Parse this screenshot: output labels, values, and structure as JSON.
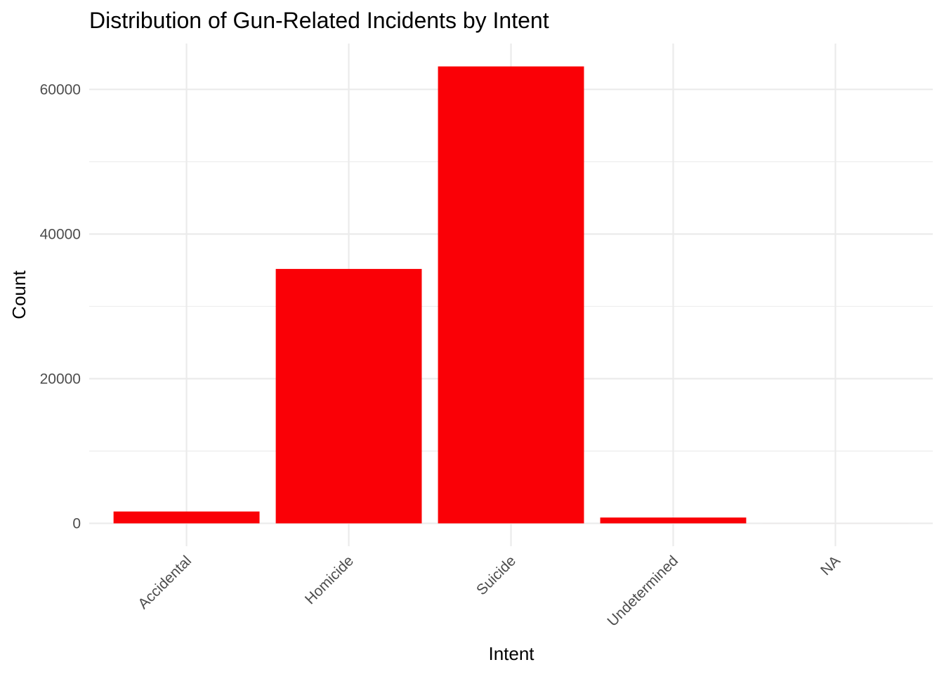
{
  "chart_data": {
    "type": "bar",
    "title": "Distribution of Gun-Related Incidents by Intent",
    "xlabel": "Intent",
    "ylabel": "Count",
    "categories": [
      "Accidental",
      "Homicide",
      "Suicide",
      "Undetermined",
      "NA"
    ],
    "values": [
      1639,
      35176,
      63175,
      807,
      1
    ],
    "ylim": [
      -3160,
      66340
    ],
    "yticks": [
      0,
      20000,
      40000,
      60000
    ],
    "ytick_labels": [
      "0",
      "20000",
      "40000",
      "60000"
    ],
    "y_minor_ticks": [
      10000,
      30000,
      50000
    ],
    "grid": true,
    "legend": "none",
    "bar_color": "#fa0006",
    "grid_color": "#ebebeb"
  }
}
